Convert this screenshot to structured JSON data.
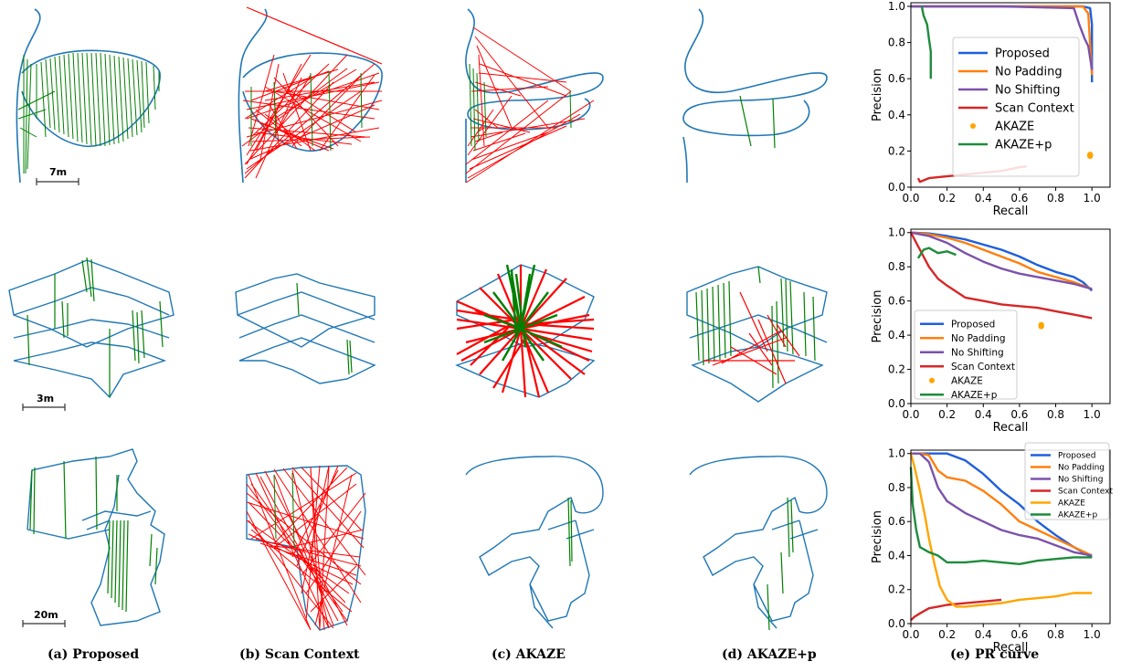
{
  "captions": {
    "a": "(a) Proposed",
    "b": "(b) Scan Context",
    "c": "(c) AKAZE",
    "d": "(d) AKAZE+p",
    "e": "(e) PR curve"
  },
  "scale_bars": [
    "7m",
    "3m",
    "20m"
  ],
  "colors": {
    "trajectory": "#1f77b4",
    "true_match": "#008000",
    "false_match": "#ff0000"
  },
  "chart_data": [
    {
      "type": "line",
      "xlabel": "Recall",
      "ylabel": "Precision",
      "xlim": [
        0,
        1.1
      ],
      "ylim": [
        0,
        1.02
      ],
      "xticks": [
        "0.0",
        "0.2",
        "0.4",
        "0.6",
        "0.8",
        "1.0"
      ],
      "yticks": [
        "0.0",
        "0.2",
        "0.4",
        "0.6",
        "0.8",
        "1.0"
      ],
      "legend": "center",
      "series": [
        {
          "name": "Proposed",
          "color": "#1f5fdc",
          "x": [
            0,
            0.5,
            0.95,
            0.99,
            1.0,
            1.0
          ],
          "y": [
            1,
            1,
            1,
            0.99,
            0.9,
            0.58
          ]
        },
        {
          "name": "No Padding",
          "color": "#ff7f0e",
          "x": [
            0,
            0.5,
            0.95,
            0.98,
            1.0
          ],
          "y": [
            1,
            1,
            1,
            0.96,
            0.62
          ]
        },
        {
          "name": "No Shifting",
          "color": "#7b52ab",
          "x": [
            0,
            0.5,
            0.9,
            0.93,
            0.96,
            0.98,
            1.0
          ],
          "y": [
            1,
            1,
            0.99,
            0.9,
            0.82,
            0.78,
            0.65
          ]
        },
        {
          "name": "Scan Context",
          "color": "#d62728",
          "x": [
            0.04,
            0.05,
            0.1,
            0.2,
            0.3,
            0.4,
            0.5,
            0.6,
            0.64
          ],
          "y": [
            0.05,
            0.03,
            0.05,
            0.06,
            0.07,
            0.08,
            0.09,
            0.11,
            0.115
          ]
        },
        {
          "name": "AKAZE",
          "color": "#ffa500",
          "marker": "dot",
          "x": [
            0.99
          ],
          "y": [
            0.18
          ]
        },
        {
          "name": "AKAZE+p",
          "color": "#1e8c3c",
          "x": [
            0.06,
            0.07,
            0.09,
            0.1,
            0.11,
            0.11
          ],
          "y": [
            1,
            0.95,
            0.9,
            0.82,
            0.75,
            0.6
          ]
        }
      ]
    },
    {
      "type": "line",
      "xlabel": "Recall",
      "ylabel": "Precision",
      "xlim": [
        0,
        1.1
      ],
      "ylim": [
        0,
        1.02
      ],
      "xticks": [
        "0.0",
        "0.2",
        "0.4",
        "0.6",
        "0.8",
        "1.0"
      ],
      "yticks": [
        "0.0",
        "0.2",
        "0.4",
        "0.6",
        "0.8",
        "1.0"
      ],
      "legend": "lower-left",
      "series": [
        {
          "name": "Proposed",
          "color": "#1f5fdc",
          "x": [
            0,
            0.1,
            0.2,
            0.3,
            0.4,
            0.5,
            0.6,
            0.7,
            0.8,
            0.9,
            0.95,
            1.0
          ],
          "y": [
            1,
            0.995,
            0.98,
            0.96,
            0.93,
            0.9,
            0.86,
            0.81,
            0.77,
            0.74,
            0.71,
            0.66
          ]
        },
        {
          "name": "No Padding",
          "color": "#ff7f0e",
          "x": [
            0,
            0.1,
            0.2,
            0.3,
            0.4,
            0.5,
            0.6,
            0.7,
            0.8,
            0.9,
            1.0
          ],
          "y": [
            1,
            0.99,
            0.97,
            0.94,
            0.9,
            0.86,
            0.82,
            0.77,
            0.74,
            0.71,
            0.67
          ]
        },
        {
          "name": "No Shifting",
          "color": "#7b52ab",
          "x": [
            0,
            0.1,
            0.2,
            0.3,
            0.4,
            0.5,
            0.6,
            0.7,
            0.8,
            0.9,
            1.0
          ],
          "y": [
            1,
            0.98,
            0.94,
            0.88,
            0.83,
            0.79,
            0.76,
            0.74,
            0.72,
            0.7,
            0.67
          ]
        },
        {
          "name": "Scan Context",
          "color": "#d62728",
          "x": [
            0,
            0.05,
            0.1,
            0.15,
            0.2,
            0.3,
            0.4,
            0.5,
            0.6,
            0.7,
            0.8,
            0.9,
            1.0
          ],
          "y": [
            1,
            0.9,
            0.8,
            0.73,
            0.69,
            0.62,
            0.6,
            0.58,
            0.57,
            0.56,
            0.54,
            0.52,
            0.5
          ]
        },
        {
          "name": "AKAZE",
          "color": "#ffa500",
          "marker": "dot",
          "x": [
            0.72
          ],
          "y": [
            0.46
          ]
        },
        {
          "name": "AKAZE+p",
          "color": "#1e8c3c",
          "x": [
            0.04,
            0.07,
            0.1,
            0.15,
            0.2,
            0.25
          ],
          "y": [
            0.85,
            0.9,
            0.91,
            0.88,
            0.89,
            0.87
          ]
        }
      ]
    },
    {
      "type": "line",
      "xlabel": "Recall",
      "ylabel": "Precision",
      "xlim": [
        0,
        1.1
      ],
      "ylim": [
        0,
        1.02
      ],
      "xticks": [
        "0.0",
        "0.2",
        "0.4",
        "0.6",
        "0.8",
        "1.0"
      ],
      "yticks": [
        "0.0",
        "0.2",
        "0.4",
        "0.6",
        "0.8",
        "1.0"
      ],
      "legend": "upper-right",
      "series": [
        {
          "name": "Proposed",
          "color": "#1f5fdc",
          "x": [
            0,
            0.2,
            0.3,
            0.4,
            0.5,
            0.6,
            0.7,
            0.8,
            0.9,
            1.0
          ],
          "y": [
            1,
            1,
            0.96,
            0.88,
            0.78,
            0.7,
            0.6,
            0.52,
            0.45,
            0.39
          ]
        },
        {
          "name": "No Padding",
          "color": "#ff7f0e",
          "x": [
            0,
            0.05,
            0.1,
            0.15,
            0.2,
            0.3,
            0.4,
            0.5,
            0.6,
            0.7,
            0.8,
            0.9,
            1.0
          ],
          "y": [
            1,
            1,
            0.99,
            0.9,
            0.86,
            0.84,
            0.78,
            0.7,
            0.6,
            0.55,
            0.5,
            0.45,
            0.4
          ]
        },
        {
          "name": "No Shifting",
          "color": "#7b52ab",
          "x": [
            0,
            0.05,
            0.1,
            0.15,
            0.2,
            0.3,
            0.4,
            0.5,
            0.6,
            0.7,
            0.8,
            0.9,
            1.0
          ],
          "y": [
            1,
            1,
            0.95,
            0.8,
            0.72,
            0.65,
            0.6,
            0.55,
            0.52,
            0.5,
            0.46,
            0.42,
            0.4
          ]
        },
        {
          "name": "Scan Context",
          "color": "#d62728",
          "x": [
            0,
            0.02,
            0.05,
            0.1,
            0.15,
            0.2,
            0.3,
            0.4,
            0.5
          ],
          "y": [
            0.02,
            0.04,
            0.06,
            0.09,
            0.1,
            0.11,
            0.12,
            0.13,
            0.14
          ]
        },
        {
          "name": "AKAZE",
          "color": "#ffa500",
          "x": [
            0,
            0.02,
            0.05,
            0.08,
            0.1,
            0.13,
            0.16,
            0.2,
            0.25,
            0.3,
            0.4,
            0.5,
            0.6,
            0.7,
            0.8,
            0.9,
            1.0
          ],
          "y": [
            1,
            0.92,
            0.78,
            0.62,
            0.5,
            0.35,
            0.22,
            0.14,
            0.1,
            0.1,
            0.11,
            0.12,
            0.14,
            0.15,
            0.16,
            0.18,
            0.18
          ]
        },
        {
          "name": "AKAZE+p",
          "color": "#1e8c3c",
          "x": [
            0,
            0.01,
            0.03,
            0.05,
            0.1,
            0.15,
            0.2,
            0.3,
            0.4,
            0.5,
            0.6,
            0.7,
            0.8,
            0.9,
            1.0
          ],
          "y": [
            0.92,
            0.7,
            0.55,
            0.45,
            0.42,
            0.4,
            0.36,
            0.36,
            0.37,
            0.36,
            0.35,
            0.37,
            0.38,
            0.39,
            0.39
          ]
        }
      ]
    }
  ]
}
